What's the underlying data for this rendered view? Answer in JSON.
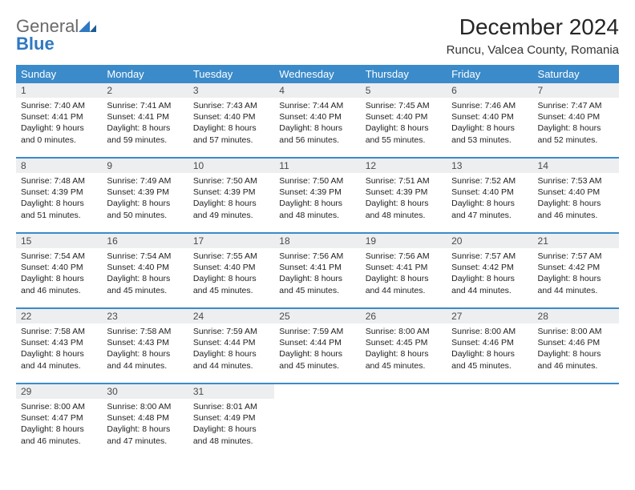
{
  "brand": {
    "general": "General",
    "blue": "Blue"
  },
  "header": {
    "title": "December 2024",
    "location": "Runcu, Valcea County, Romania"
  },
  "colors": {
    "header_bg": "#3b8bca",
    "header_text": "#ffffff",
    "daynum_bg": "#eceef0",
    "row_divider": "#3b8bca",
    "logo_gray": "#6a6a6a",
    "logo_blue": "#2f78c2"
  },
  "weekdays": [
    "Sunday",
    "Monday",
    "Tuesday",
    "Wednesday",
    "Thursday",
    "Friday",
    "Saturday"
  ],
  "weeks": [
    [
      {
        "n": "1",
        "sunrise": "7:40 AM",
        "sunset": "4:41 PM",
        "day_h": "9",
        "day_m": "0"
      },
      {
        "n": "2",
        "sunrise": "7:41 AM",
        "sunset": "4:41 PM",
        "day_h": "8",
        "day_m": "59"
      },
      {
        "n": "3",
        "sunrise": "7:43 AM",
        "sunset": "4:40 PM",
        "day_h": "8",
        "day_m": "57"
      },
      {
        "n": "4",
        "sunrise": "7:44 AM",
        "sunset": "4:40 PM",
        "day_h": "8",
        "day_m": "56"
      },
      {
        "n": "5",
        "sunrise": "7:45 AM",
        "sunset": "4:40 PM",
        "day_h": "8",
        "day_m": "55"
      },
      {
        "n": "6",
        "sunrise": "7:46 AM",
        "sunset": "4:40 PM",
        "day_h": "8",
        "day_m": "53"
      },
      {
        "n": "7",
        "sunrise": "7:47 AM",
        "sunset": "4:40 PM",
        "day_h": "8",
        "day_m": "52"
      }
    ],
    [
      {
        "n": "8",
        "sunrise": "7:48 AM",
        "sunset": "4:39 PM",
        "day_h": "8",
        "day_m": "51"
      },
      {
        "n": "9",
        "sunrise": "7:49 AM",
        "sunset": "4:39 PM",
        "day_h": "8",
        "day_m": "50"
      },
      {
        "n": "10",
        "sunrise": "7:50 AM",
        "sunset": "4:39 PM",
        "day_h": "8",
        "day_m": "49"
      },
      {
        "n": "11",
        "sunrise": "7:50 AM",
        "sunset": "4:39 PM",
        "day_h": "8",
        "day_m": "48"
      },
      {
        "n": "12",
        "sunrise": "7:51 AM",
        "sunset": "4:39 PM",
        "day_h": "8",
        "day_m": "48"
      },
      {
        "n": "13",
        "sunrise": "7:52 AM",
        "sunset": "4:40 PM",
        "day_h": "8",
        "day_m": "47"
      },
      {
        "n": "14",
        "sunrise": "7:53 AM",
        "sunset": "4:40 PM",
        "day_h": "8",
        "day_m": "46"
      }
    ],
    [
      {
        "n": "15",
        "sunrise": "7:54 AM",
        "sunset": "4:40 PM",
        "day_h": "8",
        "day_m": "46"
      },
      {
        "n": "16",
        "sunrise": "7:54 AM",
        "sunset": "4:40 PM",
        "day_h": "8",
        "day_m": "45"
      },
      {
        "n": "17",
        "sunrise": "7:55 AM",
        "sunset": "4:40 PM",
        "day_h": "8",
        "day_m": "45"
      },
      {
        "n": "18",
        "sunrise": "7:56 AM",
        "sunset": "4:41 PM",
        "day_h": "8",
        "day_m": "45"
      },
      {
        "n": "19",
        "sunrise": "7:56 AM",
        "sunset": "4:41 PM",
        "day_h": "8",
        "day_m": "44"
      },
      {
        "n": "20",
        "sunrise": "7:57 AM",
        "sunset": "4:42 PM",
        "day_h": "8",
        "day_m": "44"
      },
      {
        "n": "21",
        "sunrise": "7:57 AM",
        "sunset": "4:42 PM",
        "day_h": "8",
        "day_m": "44"
      }
    ],
    [
      {
        "n": "22",
        "sunrise": "7:58 AM",
        "sunset": "4:43 PM",
        "day_h": "8",
        "day_m": "44"
      },
      {
        "n": "23",
        "sunrise": "7:58 AM",
        "sunset": "4:43 PM",
        "day_h": "8",
        "day_m": "44"
      },
      {
        "n": "24",
        "sunrise": "7:59 AM",
        "sunset": "4:44 PM",
        "day_h": "8",
        "day_m": "44"
      },
      {
        "n": "25",
        "sunrise": "7:59 AM",
        "sunset": "4:44 PM",
        "day_h": "8",
        "day_m": "45"
      },
      {
        "n": "26",
        "sunrise": "8:00 AM",
        "sunset": "4:45 PM",
        "day_h": "8",
        "day_m": "45"
      },
      {
        "n": "27",
        "sunrise": "8:00 AM",
        "sunset": "4:46 PM",
        "day_h": "8",
        "day_m": "45"
      },
      {
        "n": "28",
        "sunrise": "8:00 AM",
        "sunset": "4:46 PM",
        "day_h": "8",
        "day_m": "46"
      }
    ],
    [
      {
        "n": "29",
        "sunrise": "8:00 AM",
        "sunset": "4:47 PM",
        "day_h": "8",
        "day_m": "46"
      },
      {
        "n": "30",
        "sunrise": "8:00 AM",
        "sunset": "4:48 PM",
        "day_h": "8",
        "day_m": "47"
      },
      {
        "n": "31",
        "sunrise": "8:01 AM",
        "sunset": "4:49 PM",
        "day_h": "8",
        "day_m": "48"
      },
      null,
      null,
      null,
      null
    ]
  ],
  "labels": {
    "sunrise": "Sunrise:",
    "sunset": "Sunset:",
    "daylight_prefix": "Daylight:",
    "hours_word": "hours",
    "and_word": "and",
    "minutes_word": "minutes."
  }
}
